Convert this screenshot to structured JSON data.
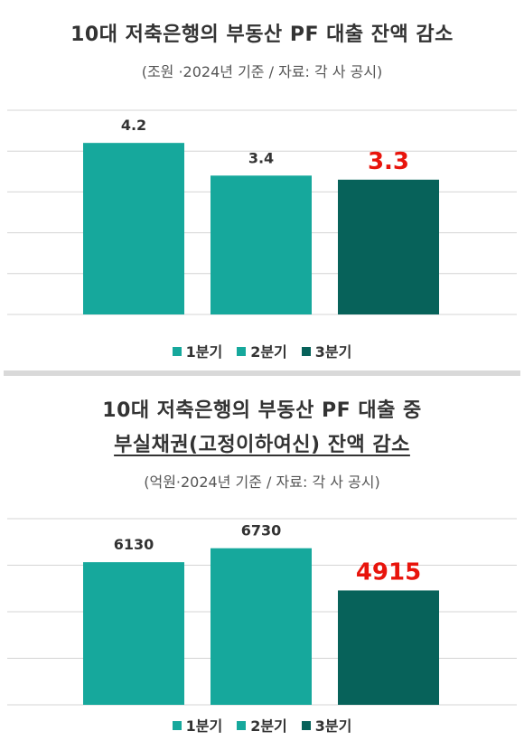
{
  "colors": {
    "q1": "#16a89c",
    "q2": "#16a89c",
    "q3": "#07625a",
    "highlight": "#e8140c",
    "grid": "#d4d4d4",
    "label": "#333333"
  },
  "legend": [
    "1분기",
    "2분기",
    "3분기"
  ],
  "chart_data": [
    {
      "type": "bar",
      "title": "10대 저축은행의 부동산 PF 대출 잔액 감소",
      "subtitle": "(조원 ·2024년 기준 / 자료: 각 사 공시)",
      "categories": [
        "1분기",
        "2분기",
        "3분기"
      ],
      "values": [
        4.2,
        3.4,
        3.3
      ],
      "value_labels": [
        "4.2",
        "3.4",
        "3.3"
      ],
      "highlight_index": 2,
      "ylim": [
        0,
        5
      ],
      "gridlines": [
        0,
        1,
        2,
        3,
        4,
        5
      ],
      "grid": true,
      "legend_position": "bottom"
    },
    {
      "type": "bar",
      "title_line1": "10대 저축은행의 부동산 PF 대출 중",
      "title_line2": "부실채권(고정이하여신) 잔액 감소",
      "subtitle": "(억원·2024년 기준 / 자료: 각 사 공시)",
      "categories": [
        "1분기",
        "2분기",
        "3분기"
      ],
      "values": [
        6130,
        6730,
        4915
      ],
      "value_labels": [
        "6130",
        "6730",
        "4915"
      ],
      "highlight_index": 2,
      "ylim": [
        0,
        8000
      ],
      "gridlines": [
        0,
        2000,
        4000,
        6000,
        8000
      ],
      "grid": true,
      "legend_position": "bottom"
    }
  ]
}
